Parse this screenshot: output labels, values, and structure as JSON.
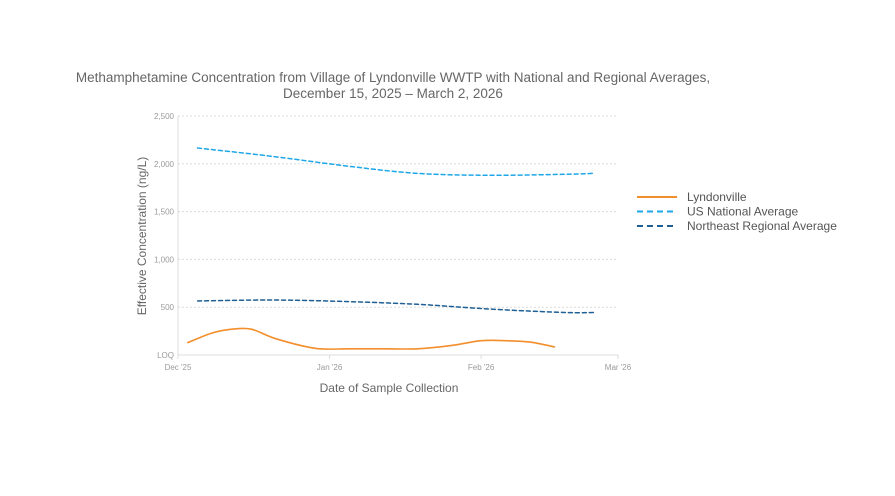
{
  "chart_data": {
    "type": "line",
    "title_lines": [
      "Methamphetamine Concentration from Village of Lyndonville WWTP with National and Regional Averages,",
      "December 15, 2025 – March 2, 2026"
    ],
    "xlabel": "Date of Sample Collection",
    "ylabel": "Effective Concentration (ng/L)",
    "x_range": [
      "2025-12-01",
      "2026-03-01"
    ],
    "x_ticks": [
      {
        "date": "2025-12-01",
        "label": "Dec '25"
      },
      {
        "date": "2026-01-01",
        "label": "Jan '26"
      },
      {
        "date": "2026-02-01",
        "label": "Feb '26"
      },
      {
        "date": "2026-03-01",
        "label": "Mar '26"
      }
    ],
    "ylim": [
      0,
      2500
    ],
    "y_ticks": [
      {
        "value": 0,
        "label": "LOQ"
      },
      {
        "value": 500,
        "label": "500"
      },
      {
        "value": 1000,
        "label": "1,000"
      },
      {
        "value": 1500,
        "label": "1,500"
      },
      {
        "value": 2000,
        "label": "2,000"
      },
      {
        "value": 2500,
        "label": "2,500"
      }
    ],
    "grid": true,
    "legend_position": "right",
    "series": [
      {
        "name": "Lyndonville",
        "style": "solid",
        "color": "#f28e2b",
        "points": [
          {
            "x": "2025-12-03",
            "y": 130
          },
          {
            "x": "2025-12-08",
            "y": 230
          },
          {
            "x": "2025-12-12",
            "y": 270
          },
          {
            "x": "2025-12-16",
            "y": 270
          },
          {
            "x": "2025-12-21",
            "y": 170
          },
          {
            "x": "2025-12-29",
            "y": 70
          },
          {
            "x": "2026-01-05",
            "y": 65
          },
          {
            "x": "2026-01-12",
            "y": 65
          },
          {
            "x": "2026-01-19",
            "y": 65
          },
          {
            "x": "2026-01-26",
            "y": 100
          },
          {
            "x": "2026-02-01",
            "y": 150
          },
          {
            "x": "2026-02-06",
            "y": 150
          },
          {
            "x": "2026-02-11",
            "y": 135
          },
          {
            "x": "2026-02-16",
            "y": 85
          }
        ]
      },
      {
        "name": "US National Average",
        "style": "dashed",
        "color": "#1ea7e8",
        "points": [
          {
            "x": "2025-12-05",
            "y": 2165
          },
          {
            "x": "2025-12-20",
            "y": 2080
          },
          {
            "x": "2026-01-04",
            "y": 1980
          },
          {
            "x": "2026-01-19",
            "y": 1900
          },
          {
            "x": "2026-02-03",
            "y": 1880
          },
          {
            "x": "2026-02-18",
            "y": 1890
          },
          {
            "x": "2026-02-24",
            "y": 1900
          }
        ]
      },
      {
        "name": "Northeast Regional Average",
        "style": "dashed",
        "color": "#1f5f96",
        "points": [
          {
            "x": "2025-12-05",
            "y": 565
          },
          {
            "x": "2025-12-20",
            "y": 575
          },
          {
            "x": "2026-01-04",
            "y": 560
          },
          {
            "x": "2026-01-19",
            "y": 530
          },
          {
            "x": "2026-02-03",
            "y": 480
          },
          {
            "x": "2026-02-18",
            "y": 445
          },
          {
            "x": "2026-02-24",
            "y": 445
          }
        ]
      }
    ]
  }
}
